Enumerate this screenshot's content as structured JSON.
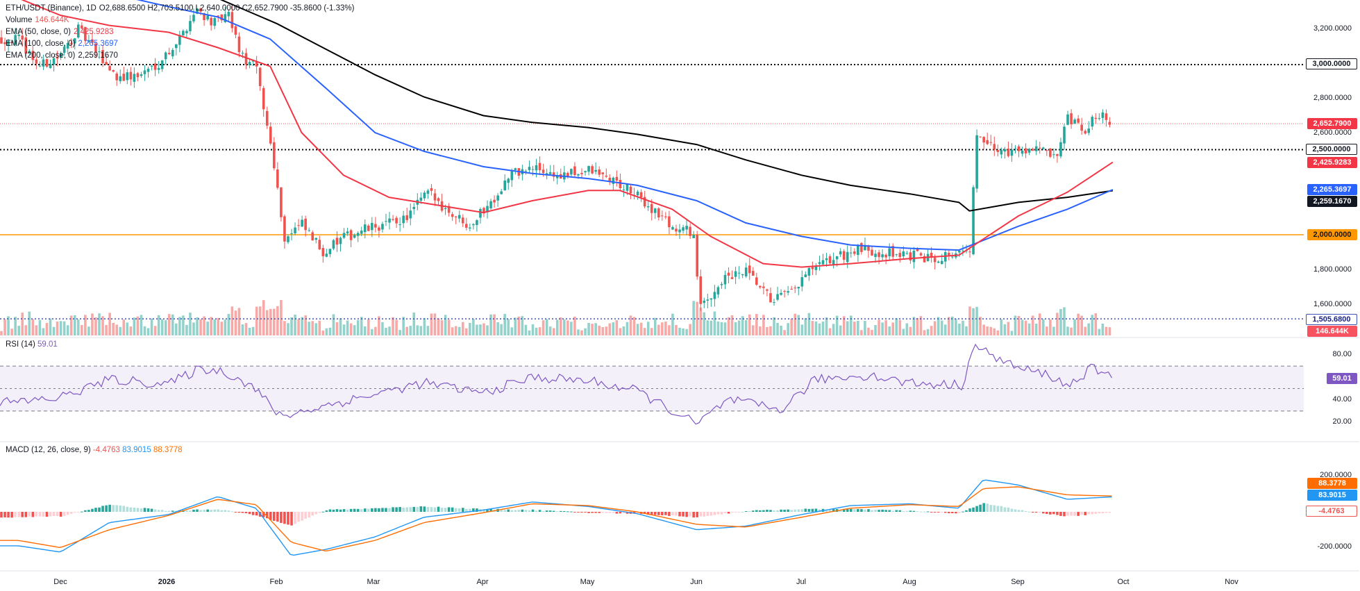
{
  "header": {
    "symbol": "ETH/USDT (Binance), 1D",
    "ohlc": "O2,688.6500  H2,703.5100  L2,640.0000  C2,652.7900  -35.8600 (-1.33%)",
    "volume_label": "Volume",
    "volume_value": "146.644K",
    "ema50_label": "EMA (50, close, 0)",
    "ema50_value": "2,425.9283",
    "ema100_label": "EMA (100, close, 0)",
    "ema100_value": "2,265.3697",
    "ema200_label": "EMA (200, close, 0)",
    "ema200_value": "2,259.1670"
  },
  "colors": {
    "up": "#26a69a",
    "down": "#ef5350",
    "ema50": "#f23645",
    "ema100": "#2962ff",
    "ema200": "#000000",
    "level_2000": "#ff9800",
    "rsi": "#7e57c2",
    "macd_line": "#2196f3",
    "signal_line": "#ff6d00"
  },
  "price_axis": {
    "ticks": [
      "3,200.0000",
      "2,800.0000",
      "2,600.0000",
      "1,800.0000",
      "1,600.0000"
    ]
  },
  "price_tags": {
    "level_3000": "3,000.0000",
    "last_price": "2,652.7900",
    "level_2500": "2,500.0000",
    "ema50": "2,425.9283",
    "ema100": "2,265.3697",
    "ema200": "2,259.1670",
    "level_2000": "2,000.0000",
    "low_level": "1,505.6800",
    "volume": "146.644K"
  },
  "rsi": {
    "title": "RSI (14)",
    "value": "59.01",
    "ticks": [
      "80.00",
      "40.00",
      "20.00"
    ]
  },
  "macd": {
    "title": "MACD (12, 26, close, 9)",
    "hist_value": "-4.4763",
    "macd_value": "83.9015",
    "signal_value": "88.3778",
    "ticks": [
      "200.0000",
      "-200.0000"
    ]
  },
  "time_axis": {
    "labels": [
      "Dec",
      "2026",
      "Feb",
      "Mar",
      "Apr",
      "May",
      "Jun",
      "Jul",
      "Aug",
      "Sep",
      "Oct",
      "Nov"
    ]
  },
  "chart_data": {
    "type": "candlestick",
    "title": "ETH/USDT (Binance), 1D",
    "horizontal_levels": [
      3000,
      2500,
      2000,
      1505.68
    ],
    "ylim": [
      1380,
      3400
    ],
    "last": {
      "open": 2688.65,
      "high": 2703.51,
      "low": 2640.0,
      "close": 2652.79
    },
    "close_path": {
      "dates": [
        "2025-11-19",
        "2025-11-25",
        "2025-12-01",
        "2025-12-06",
        "2025-12-11",
        "2025-12-17",
        "2025-12-23",
        "2025-12-29",
        "2026-01-04",
        "2026-01-09",
        "2026-01-14",
        "2026-01-18",
        "2026-01-22",
        "2026-01-26",
        "2026-01-31",
        "2026-02-03",
        "2026-02-08",
        "2026-02-14",
        "2026-02-20",
        "2026-02-26",
        "2026-03-04",
        "2026-03-10",
        "2026-03-16",
        "2026-03-22",
        "2026-03-28",
        "2026-04-03",
        "2026-04-09",
        "2026-04-16",
        "2026-04-23",
        "2026-05-01",
        "2026-05-08",
        "2026-05-14",
        "2026-05-20",
        "2026-05-26",
        "2026-05-31",
        "2026-06-02",
        "2026-06-08",
        "2026-06-15",
        "2026-06-22",
        "2026-06-28",
        "2026-07-03",
        "2026-07-10",
        "2026-07-17",
        "2026-07-24",
        "2026-07-31",
        "2026-08-07",
        "2026-08-14",
        "2026-08-18",
        "2026-08-20",
        "2026-08-25",
        "2026-08-31",
        "2026-09-06",
        "2026-09-12",
        "2026-09-15",
        "2026-09-20",
        "2026-09-24",
        "2026-09-28"
      ],
      "values": [
        3150,
        2990,
        3050,
        3210,
        3080,
        2930,
        2930,
        3010,
        3150,
        3330,
        3240,
        3290,
        3040,
        2980,
        2440,
        1980,
        2060,
        1900,
        1980,
        2030,
        2060,
        2100,
        2250,
        2140,
        2060,
        2190,
        2360,
        2390,
        2340,
        2380,
        2320,
        2240,
        2140,
        2030,
        2020,
        1560,
        1730,
        1780,
        1620,
        1650,
        1780,
        1860,
        1910,
        1900,
        1880,
        1860,
        1900,
        1880,
        2570,
        2500,
        2490,
        2520,
        2430,
        2680,
        2600,
        2720,
        2652.79
      ]
    },
    "ema50": {
      "dates": [
        "2025-11-19",
        "2025-12-01",
        "2025-12-15",
        "2026-01-01",
        "2026-01-15",
        "2026-01-30",
        "2026-02-08",
        "2026-02-20",
        "2026-03-05",
        "2026-03-20",
        "2026-04-01",
        "2026-04-15",
        "2026-05-01",
        "2026-05-10",
        "2026-05-25",
        "2026-06-05",
        "2026-06-20",
        "2026-07-01",
        "2026-07-15",
        "2026-08-01",
        "2026-08-15",
        "2026-09-01",
        "2026-09-15",
        "2026-09-28"
      ],
      "values": [
        3390,
        3290,
        3230,
        3190,
        3100,
        2990,
        2600,
        2350,
        2220,
        2170,
        2130,
        2200,
        2260,
        2260,
        2150,
        1990,
        1830,
        1810,
        1830,
        1860,
        1880,
        2110,
        2250,
        2425.93
      ]
    },
    "ema100": {
      "dates": [
        "2025-11-19",
        "2025-12-01",
        "2025-12-15",
        "2026-01-01",
        "2026-01-15",
        "2026-01-30",
        "2026-02-15",
        "2026-03-01",
        "2026-03-15",
        "2026-04-01",
        "2026-04-15",
        "2026-05-01",
        "2026-05-15",
        "2026-06-01",
        "2026-06-15",
        "2026-07-01",
        "2026-07-15",
        "2026-08-01",
        "2026-08-15",
        "2026-09-01",
        "2026-09-15",
        "2026-09-28"
      ],
      "values": [
        3560,
        3500,
        3420,
        3340,
        3280,
        3150,
        2860,
        2600,
        2490,
        2400,
        2360,
        2330,
        2290,
        2200,
        2070,
        1990,
        1940,
        1920,
        1910,
        2050,
        2150,
        2265.37
      ]
    },
    "ema200": {
      "dates": [
        "2026-01-01",
        "2026-01-15",
        "2026-02-01",
        "2026-02-15",
        "2026-03-01",
        "2026-03-15",
        "2026-04-01",
        "2026-04-15",
        "2026-05-01",
        "2026-05-15",
        "2026-06-01",
        "2026-06-15",
        "2026-07-01",
        "2026-07-15",
        "2026-08-01",
        "2026-08-15",
        "2026-08-18",
        "2026-09-01",
        "2026-09-15",
        "2026-09-28"
      ],
      "values": [
        3460,
        3390,
        3240,
        3090,
        2940,
        2810,
        2700,
        2660,
        2630,
        2590,
        2530,
        2440,
        2350,
        2290,
        2240,
        2190,
        2140,
        2190,
        2220,
        2259.17
      ]
    },
    "rsi": {
      "name": "RSI (14)",
      "levels": [
        70,
        50,
        30
      ],
      "ylim": [
        0,
        100
      ],
      "dates": [
        "2025-11-19",
        "2025-12-01",
        "2025-12-15",
        "2026-01-01",
        "2026-01-10",
        "2026-01-17",
        "2026-01-25",
        "2026-02-02",
        "2026-02-15",
        "2026-03-01",
        "2026-03-15",
        "2026-04-01",
        "2026-04-15",
        "2026-05-01",
        "2026-05-15",
        "2026-06-01",
        "2026-06-10",
        "2026-06-25",
        "2026-07-05",
        "2026-07-20",
        "2026-08-01",
        "2026-08-16",
        "2026-08-19",
        "2026-09-01",
        "2026-09-10",
        "2026-09-15",
        "2026-09-22",
        "2026-09-28"
      ],
      "values": [
        38,
        42,
        58,
        54,
        68,
        65,
        52,
        25,
        35,
        45,
        55,
        46,
        60,
        57,
        48,
        18,
        40,
        31,
        58,
        62,
        55,
        53,
        88,
        68,
        62,
        52,
        68,
        59.01
      ]
    },
    "macd": {
      "name": "MACD (12, 26, close, 9)",
      "ylim": [
        -280,
        260
      ],
      "dates": [
        "2025-11-19",
        "2025-12-01",
        "2025-12-15",
        "2026-01-01",
        "2026-01-15",
        "2026-01-26",
        "2026-02-05",
        "2026-02-15",
        "2026-03-01",
        "2026-03-15",
        "2026-04-01",
        "2026-04-15",
        "2026-05-01",
        "2026-05-15",
        "2026-06-01",
        "2026-06-15",
        "2026-07-01",
        "2026-07-15",
        "2026-08-01",
        "2026-08-15",
        "2026-08-22",
        "2026-09-01",
        "2026-09-15",
        "2026-09-28"
      ],
      "macd_values": [
        -190,
        -225,
        -60,
        -15,
        85,
        20,
        -245,
        -210,
        -140,
        -30,
        10,
        55,
        30,
        -10,
        -100,
        -80,
        -15,
        35,
        45,
        20,
        180,
        150,
        70,
        83.9
      ],
      "signal_values": [
        -160,
        -200,
        -100,
        -20,
        70,
        40,
        -170,
        -220,
        -160,
        -60,
        -5,
        45,
        35,
        0,
        -70,
        -85,
        -30,
        20,
        40,
        30,
        130,
        140,
        95,
        88.38
      ],
      "histogram_last": -4.4763
    }
  }
}
